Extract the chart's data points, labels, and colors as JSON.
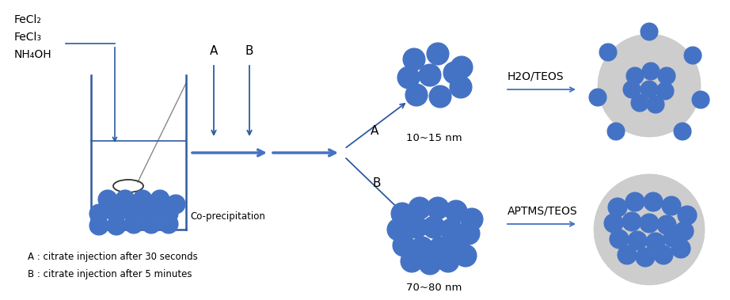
{
  "bg_color": "#ffffff",
  "blue_color": "#4472C4",
  "dark_blue": "#2E5B9E",
  "gray_color": "#C8C8C8",
  "text_color": "#000000",
  "reagents_text": [
    "FeCl₂",
    "FeCl₃",
    "NH₄OH"
  ],
  "beaker_label": "Co-precipitation",
  "label_A": "A",
  "label_B": "B",
  "label_fork_A": "A",
  "label_fork_B": "B",
  "size_A": "10~15 nm",
  "size_B": "70~80 nm",
  "arrow_label_A": "H2O/TEOS",
  "arrow_label_B": "APTMS/TEOS",
  "legend_A": "A : citrate injection after 30 seconds",
  "legend_B": "B : citrate injection after 5 minutes",
  "figw": 9.22,
  "figh": 3.79,
  "dpi": 100
}
